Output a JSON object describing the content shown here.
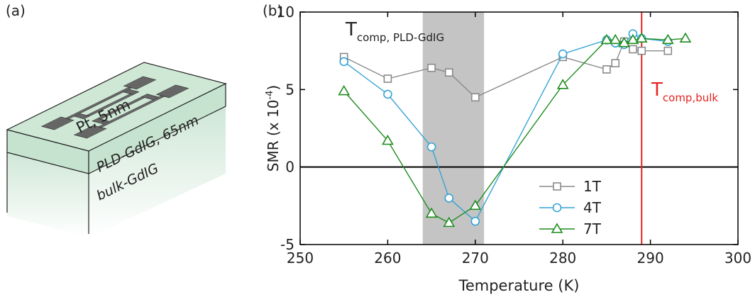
{
  "panel_a": {
    "label": "(a)",
    "top_layer": "Pt, 5nm",
    "middle_layer": "PLD-GdIG, 65nm",
    "bottom_layer": "bulk-GdIG"
  },
  "chart_data": {
    "type": "line",
    "panel_label": "(b)",
    "x_label": "Temperature (K)",
    "y_label": {
      "base": "SMR (x 10",
      "sup": "-4",
      "end": ")"
    },
    "xlim": [
      250,
      300
    ],
    "xticks": [
      250,
      260,
      270,
      280,
      290,
      300
    ],
    "ylim": [
      -5,
      10
    ],
    "yticks": [
      -5,
      0,
      5,
      10
    ],
    "zero_line": 0,
    "shaded_x": [
      264,
      271
    ],
    "vline_x": 289,
    "vline_color": "#e52421",
    "annotations": [
      {
        "text": "T",
        "subscript": "comp, PLD-GdIG",
        "color": "#222222"
      },
      {
        "text": "T",
        "subscript": "comp,bulk",
        "color": "#e52421"
      }
    ],
    "legend": "lower center",
    "series": [
      {
        "name": "1T",
        "color": "#8a8a8a",
        "marker": "square",
        "x": [
          255,
          260,
          265,
          267,
          270,
          280,
          285,
          286,
          287,
          288,
          289,
          292
        ],
        "values": [
          7.1,
          5.7,
          6.4,
          6.1,
          4.5,
          7.1,
          6.3,
          6.7,
          8.1,
          7.6,
          7.5,
          7.5
        ]
      },
      {
        "name": "4T",
        "color": "#35a3d6",
        "marker": "circle",
        "x": [
          255,
          260,
          265,
          267,
          270,
          280,
          285,
          286,
          287,
          288,
          289,
          292
        ],
        "values": [
          6.8,
          4.7,
          1.3,
          -2.0,
          -3.5,
          7.3,
          8.2,
          8.0,
          7.9,
          8.6,
          8.3,
          8.1
        ]
      },
      {
        "name": "7T",
        "color": "#1e8c1e",
        "marker": "triangle",
        "x": [
          255,
          260,
          265,
          267,
          270,
          280,
          285,
          286,
          287,
          288,
          289,
          292,
          294
        ],
        "values": [
          4.9,
          1.7,
          -3.0,
          -3.6,
          -2.5,
          5.3,
          8.2,
          8.2,
          8.0,
          8.2,
          8.3,
          8.2,
          8.3
        ]
      }
    ]
  }
}
